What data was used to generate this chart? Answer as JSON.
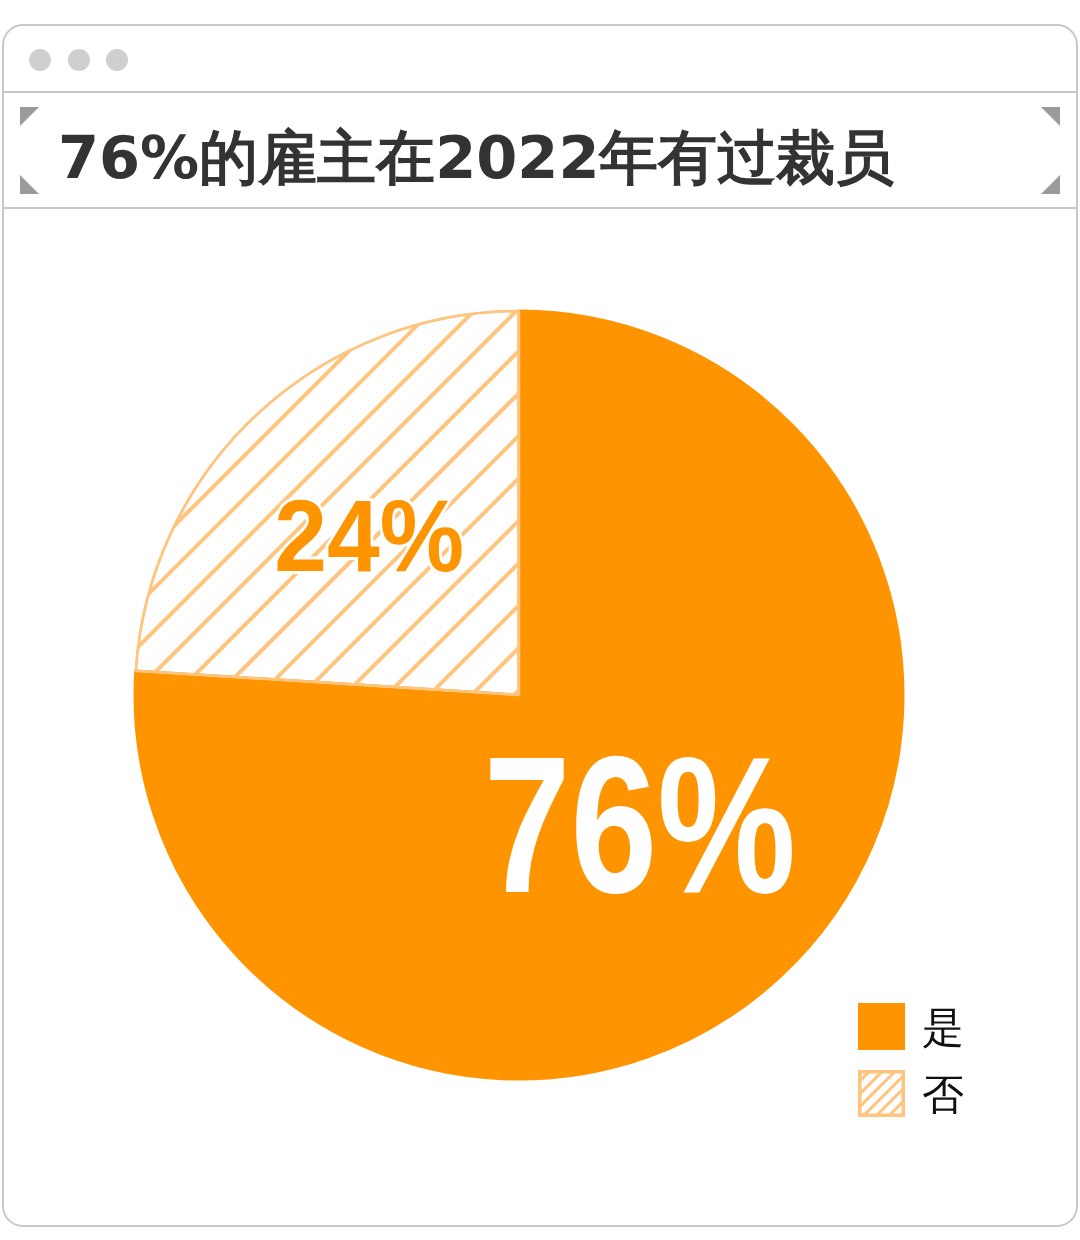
{
  "chart_data": {
    "type": "pie",
    "title": "76%的雇主在2022年有过裁员",
    "categories": [
      "是",
      "否"
    ],
    "values": [
      76,
      24
    ],
    "colors": [
      "#fe9400",
      "#ffc47e"
    ],
    "value_labels": [
      "76%",
      "24%"
    ],
    "legend": "bottom right"
  }
}
